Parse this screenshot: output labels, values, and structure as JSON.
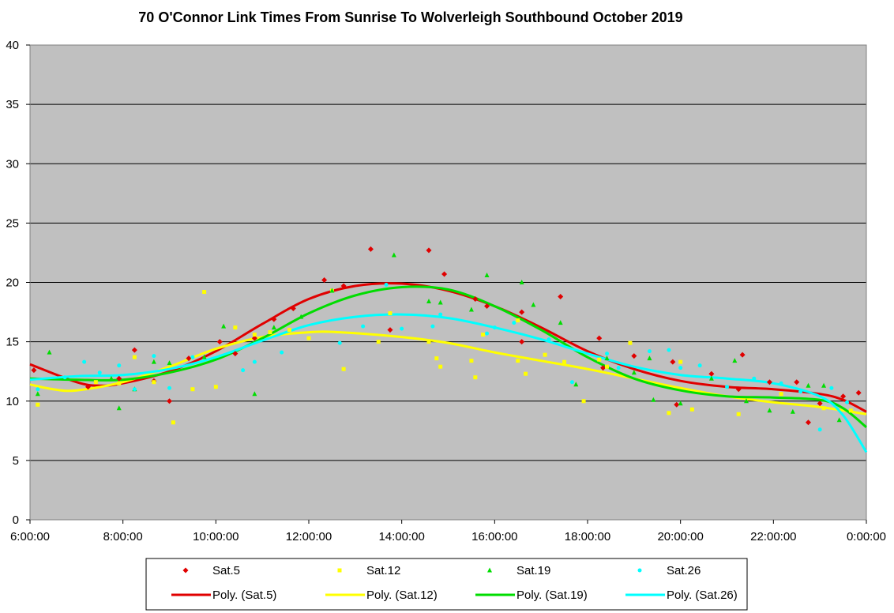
{
  "chart_data": {
    "type": "scatter",
    "title": "70 O'Connor Link Times From Sunrise To Wolverleigh Southbound October 2019",
    "xlabel": "",
    "ylabel": "",
    "xlim": [
      "6:00:00",
      "0:00:00"
    ],
    "ylim": [
      0,
      40
    ],
    "y_ticks": [
      "0",
      "5",
      "10",
      "15",
      "20",
      "25",
      "30",
      "35",
      "40"
    ],
    "x_ticks": [
      "6:00:00",
      "8:00:00",
      "10:00:00",
      "12:00:00",
      "14:00:00",
      "16:00:00",
      "18:00:00",
      "20:00:00",
      "22:00:00",
      "0:00:00"
    ],
    "grid": "horizontal",
    "legend_position": "bottom",
    "series": [
      {
        "name": "Sat.5",
        "kind": "scatter",
        "marker": "diamond",
        "color": "#e00000",
        "points": [
          [
            "6:05",
            12.6
          ],
          [
            "7:15",
            11.2
          ],
          [
            "7:55",
            11.9
          ],
          [
            "8:15",
            14.3
          ],
          [
            "8:40",
            11.7
          ],
          [
            "9:00",
            10.0
          ],
          [
            "9:25",
            13.6
          ],
          [
            "10:05",
            15.0
          ],
          [
            "10:25",
            14.0
          ],
          [
            "10:50",
            15.3
          ],
          [
            "11:15",
            16.9
          ],
          [
            "11:40",
            17.8
          ],
          [
            "12:20",
            20.2
          ],
          [
            "12:45",
            19.7
          ],
          [
            "13:20",
            22.8
          ],
          [
            "13:45",
            16.0
          ],
          [
            "14:35",
            22.7
          ],
          [
            "14:55",
            20.7
          ],
          [
            "15:35",
            18.6
          ],
          [
            "15:50",
            18.0
          ],
          [
            "16:35",
            17.5
          ],
          [
            "16:35",
            15.0
          ],
          [
            "17:25",
            18.8
          ],
          [
            "18:15",
            15.3
          ],
          [
            "18:20",
            12.8
          ],
          [
            "19:00",
            13.8
          ],
          [
            "19:50",
            13.3
          ],
          [
            "19:55",
            9.7
          ],
          [
            "20:40",
            12.3
          ],
          [
            "21:20",
            13.9
          ],
          [
            "21:15",
            11.0
          ],
          [
            "21:55",
            11.6
          ],
          [
            "22:30",
            11.6
          ],
          [
            "22:45",
            8.2
          ],
          [
            "23:00",
            9.8
          ],
          [
            "23:30",
            10.4
          ],
          [
            "23:50",
            10.7
          ]
        ]
      },
      {
        "name": "Sat.12",
        "kind": "scatter",
        "marker": "square",
        "color": "#ffff00",
        "points": [
          [
            "6:10",
            9.7
          ],
          [
            "7:25",
            11.6
          ],
          [
            "7:55",
            11.5
          ],
          [
            "8:15",
            13.7
          ],
          [
            "8:40",
            11.6
          ],
          [
            "9:05",
            8.2
          ],
          [
            "9:30",
            11.0
          ],
          [
            "9:45",
            19.2
          ],
          [
            "10:00",
            11.2
          ],
          [
            "10:25",
            16.2
          ],
          [
            "10:50",
            15.6
          ],
          [
            "11:10",
            15.8
          ],
          [
            "11:35",
            16.0
          ],
          [
            "12:00",
            15.3
          ],
          [
            "12:30",
            19.3
          ],
          [
            "12:45",
            12.7
          ],
          [
            "13:30",
            15.0
          ],
          [
            "13:45",
            17.4
          ],
          [
            "14:35",
            15.0
          ],
          [
            "14:45",
            13.6
          ],
          [
            "14:50",
            12.9
          ],
          [
            "15:30",
            13.4
          ],
          [
            "15:35",
            12.0
          ],
          [
            "15:45",
            15.6
          ],
          [
            "16:30",
            16.8
          ],
          [
            "16:30",
            13.4
          ],
          [
            "16:40",
            12.3
          ],
          [
            "17:05",
            13.9
          ],
          [
            "17:30",
            13.3
          ],
          [
            "17:55",
            10.0
          ],
          [
            "18:15",
            13.5
          ],
          [
            "18:25",
            12.9
          ],
          [
            "18:55",
            14.9
          ],
          [
            "19:45",
            9.0
          ],
          [
            "20:00",
            13.3
          ],
          [
            "20:15",
            9.3
          ],
          [
            "21:15",
            8.9
          ],
          [
            "22:10",
            10.6
          ],
          [
            "23:05",
            9.4
          ],
          [
            "23:40",
            9.2
          ]
        ]
      },
      {
        "name": "Sat.19",
        "kind": "scatter",
        "marker": "triangle",
        "color": "#00dd00",
        "points": [
          [
            "6:10",
            10.6
          ],
          [
            "6:25",
            14.1
          ],
          [
            "7:45",
            11.9
          ],
          [
            "7:55",
            9.4
          ],
          [
            "8:15",
            11.0
          ],
          [
            "8:40",
            13.3
          ],
          [
            "9:00",
            13.2
          ],
          [
            "9:45",
            13.7
          ],
          [
            "10:10",
            16.3
          ],
          [
            "10:50",
            10.6
          ],
          [
            "11:15",
            16.2
          ],
          [
            "11:50",
            17.1
          ],
          [
            "12:30",
            19.3
          ],
          [
            "13:50",
            22.3
          ],
          [
            "14:35",
            18.4
          ],
          [
            "14:50",
            18.3
          ],
          [
            "15:30",
            17.7
          ],
          [
            "15:50",
            20.6
          ],
          [
            "16:35",
            20.0
          ],
          [
            "16:50",
            18.1
          ],
          [
            "17:25",
            16.6
          ],
          [
            "17:45",
            11.4
          ],
          [
            "18:25",
            13.6
          ],
          [
            "19:00",
            12.4
          ],
          [
            "19:20",
            13.6
          ],
          [
            "19:25",
            10.1
          ],
          [
            "20:00",
            9.8
          ],
          [
            "20:40",
            11.9
          ],
          [
            "21:10",
            13.4
          ],
          [
            "21:25",
            10.0
          ],
          [
            "21:55",
            9.2
          ],
          [
            "22:25",
            9.1
          ],
          [
            "22:45",
            11.3
          ],
          [
            "23:05",
            11.3
          ],
          [
            "23:25",
            8.4
          ]
        ]
      },
      {
        "name": "Sat.26",
        "kind": "scatter",
        "marker": "circle",
        "color": "#00ffff",
        "points": [
          [
            "6:10",
            11.0
          ],
          [
            "6:45",
            12.0
          ],
          [
            "7:10",
            13.3
          ],
          [
            "7:30",
            12.4
          ],
          [
            "7:55",
            13.0
          ],
          [
            "8:15",
            11.0
          ],
          [
            "8:40",
            13.8
          ],
          [
            "9:00",
            11.1
          ],
          [
            "9:30",
            13.7
          ],
          [
            "10:35",
            12.6
          ],
          [
            "10:50",
            13.3
          ],
          [
            "11:25",
            14.1
          ],
          [
            "12:40",
            14.9
          ],
          [
            "13:10",
            16.3
          ],
          [
            "13:40",
            19.8
          ],
          [
            "14:00",
            16.1
          ],
          [
            "14:40",
            16.3
          ],
          [
            "14:50",
            17.3
          ],
          [
            "15:50",
            15.7
          ],
          [
            "16:00",
            16.2
          ],
          [
            "16:25",
            16.6
          ],
          [
            "17:10",
            15.2
          ],
          [
            "17:40",
            11.6
          ],
          [
            "18:25",
            14.0
          ],
          [
            "18:40",
            12.8
          ],
          [
            "19:20",
            14.2
          ],
          [
            "19:45",
            14.3
          ],
          [
            "20:00",
            12.8
          ],
          [
            "20:25",
            13.0
          ],
          [
            "21:00",
            11.2
          ],
          [
            "21:35",
            11.9
          ],
          [
            "22:10",
            11.5
          ],
          [
            "22:35",
            10.8
          ],
          [
            "23:00",
            7.6
          ],
          [
            "23:15",
            11.1
          ],
          [
            "23:35",
            9.9
          ]
        ]
      },
      {
        "name": "Poly. (Sat.5)",
        "kind": "trendline",
        "color": "#e00000",
        "points": [
          [
            "6:00",
            13.1
          ],
          [
            "7:00",
            11.6
          ],
          [
            "7:30",
            11.3
          ],
          [
            "8:00",
            11.5
          ],
          [
            "9:00",
            12.5
          ],
          [
            "10:00",
            14.2
          ],
          [
            "11:00",
            16.5
          ],
          [
            "12:00",
            18.6
          ],
          [
            "13:00",
            19.7
          ],
          [
            "14:00",
            19.9
          ],
          [
            "15:00",
            19.3
          ],
          [
            "16:00",
            18.0
          ],
          [
            "17:00",
            16.2
          ],
          [
            "18:00",
            14.2
          ],
          [
            "19:00",
            12.7
          ],
          [
            "20:00",
            11.7
          ],
          [
            "21:00",
            11.2
          ],
          [
            "22:00",
            11.0
          ],
          [
            "23:00",
            10.6
          ],
          [
            "23:30",
            10.1
          ],
          [
            "0:00",
            9.1
          ]
        ]
      },
      {
        "name": "Poly. (Sat.12)",
        "kind": "trendline",
        "color": "#ffff00",
        "points": [
          [
            "6:00",
            11.4
          ],
          [
            "6:30",
            11.0
          ],
          [
            "7:00",
            10.9
          ],
          [
            "8:00",
            11.6
          ],
          [
            "9:00",
            12.9
          ],
          [
            "10:00",
            14.4
          ],
          [
            "11:00",
            15.4
          ],
          [
            "12:00",
            15.8
          ],
          [
            "12:40",
            15.8
          ],
          [
            "14:00",
            15.4
          ],
          [
            "15:00",
            14.9
          ],
          [
            "16:00",
            14.1
          ],
          [
            "17:00",
            13.4
          ],
          [
            "18:00",
            12.7
          ],
          [
            "19:00",
            11.9
          ],
          [
            "20:00",
            11.1
          ],
          [
            "21:00",
            10.4
          ],
          [
            "22:00",
            9.9
          ],
          [
            "23:00",
            9.5
          ],
          [
            "0:00",
            8.9
          ]
        ]
      },
      {
        "name": "Poly. (Sat.19)",
        "kind": "trendline",
        "color": "#00dd00",
        "points": [
          [
            "6:00",
            11.9
          ],
          [
            "7:00",
            11.8
          ],
          [
            "8:00",
            11.8
          ],
          [
            "9:00",
            12.4
          ],
          [
            "10:00",
            13.5
          ],
          [
            "11:00",
            15.3
          ],
          [
            "12:00",
            17.4
          ],
          [
            "13:00",
            18.9
          ],
          [
            "14:00",
            19.6
          ],
          [
            "15:00",
            19.4
          ],
          [
            "16:00",
            18.0
          ],
          [
            "17:00",
            16.0
          ],
          [
            "18:00",
            13.7
          ],
          [
            "19:00",
            11.9
          ],
          [
            "20:00",
            10.9
          ],
          [
            "21:00",
            10.4
          ],
          [
            "22:00",
            10.3
          ],
          [
            "23:00",
            10.1
          ],
          [
            "23:30",
            9.4
          ],
          [
            "0:00",
            7.8
          ]
        ]
      },
      {
        "name": "Poly. (Sat.26)",
        "kind": "trendline",
        "color": "#00ffff",
        "points": [
          [
            "6:00",
            11.8
          ],
          [
            "7:00",
            12.1
          ],
          [
            "8:00",
            12.2
          ],
          [
            "9:00",
            12.7
          ],
          [
            "10:00",
            13.7
          ],
          [
            "11:00",
            15.1
          ],
          [
            "12:00",
            16.4
          ],
          [
            "13:00",
            17.1
          ],
          [
            "14:00",
            17.3
          ],
          [
            "15:00",
            17.0
          ],
          [
            "16:00",
            16.2
          ],
          [
            "17:00",
            15.2
          ],
          [
            "18:00",
            14.0
          ],
          [
            "19:00",
            12.9
          ],
          [
            "20:00",
            12.2
          ],
          [
            "21:00",
            11.9
          ],
          [
            "22:00",
            11.5
          ],
          [
            "23:00",
            10.4
          ],
          [
            "23:30",
            8.8
          ],
          [
            "0:00",
            5.7
          ]
        ]
      }
    ]
  }
}
